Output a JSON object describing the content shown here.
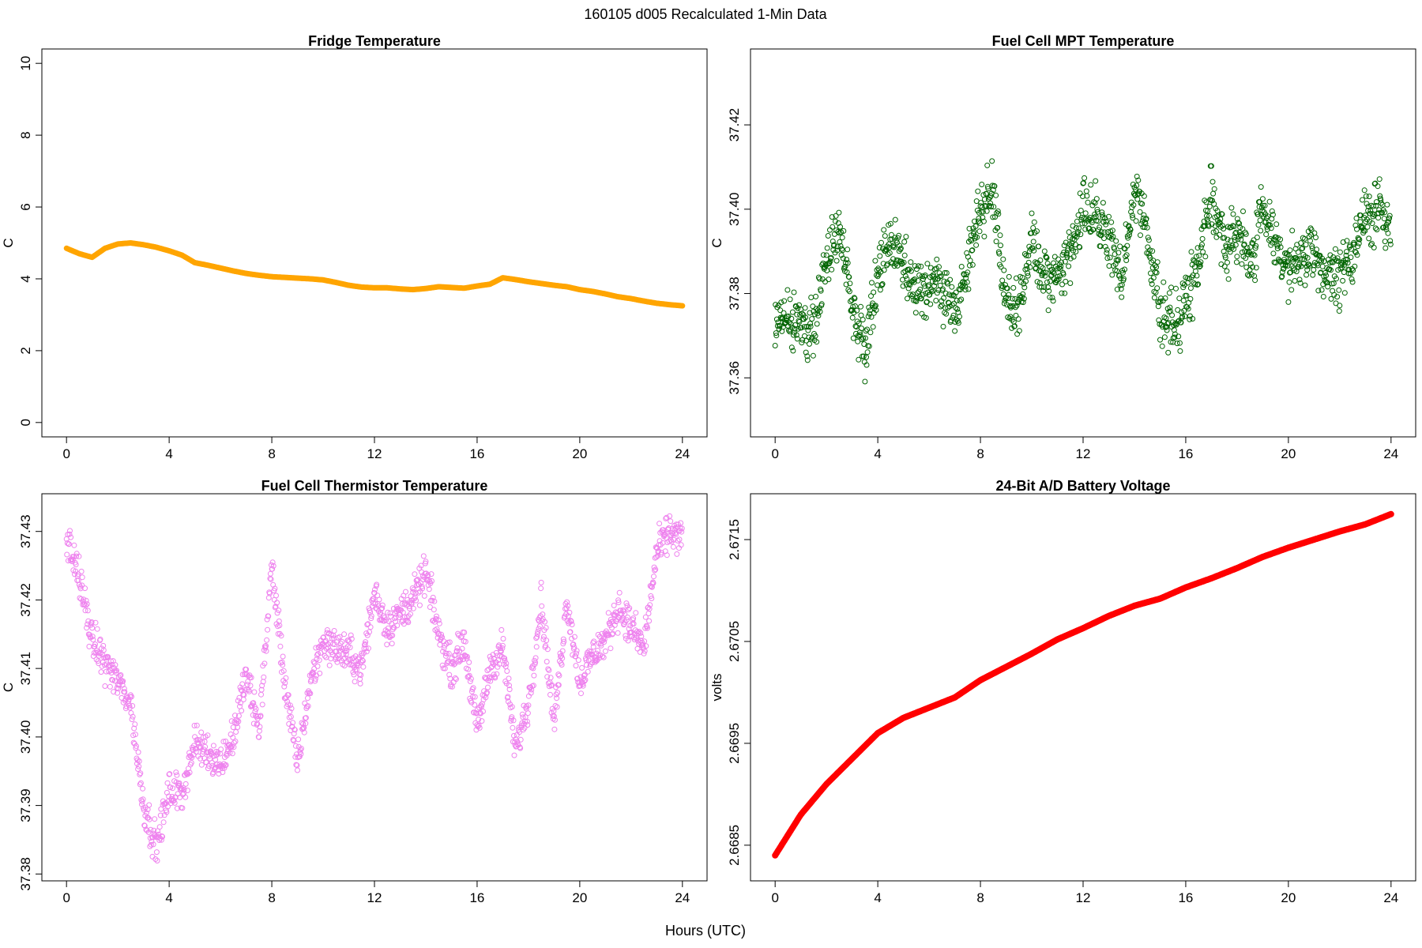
{
  "page": {
    "suptitle": "160105   d005   Recalculated 1-Min Data",
    "xlabel": "Hours (UTC)"
  },
  "chart_data": [
    {
      "id": "fridge",
      "type": "line",
      "title": "Fridge Temperature",
      "xlabel": "Hours (UTC)",
      "ylabel": "C",
      "color": "#FFA500",
      "xlim": [
        -0.96,
        24.96
      ],
      "ylim": [
        -0.4,
        10.4
      ],
      "xticks": [
        "0",
        "4",
        "8",
        "12",
        "16",
        "20",
        "24"
      ],
      "yticks": [
        "0",
        "2",
        "4",
        "6",
        "8",
        "10"
      ],
      "x": [
        0,
        0.5,
        1,
        1.5,
        2,
        2.5,
        3,
        3.5,
        4,
        4.5,
        5,
        5.5,
        6,
        6.5,
        7,
        7.5,
        8,
        8.5,
        9,
        9.5,
        10,
        10.5,
        11,
        11.5,
        12,
        12.5,
        13,
        13.5,
        14,
        14.5,
        15,
        15.5,
        16,
        16.5,
        17,
        17.5,
        18,
        18.5,
        19,
        19.5,
        20,
        20.5,
        21,
        21.5,
        22,
        22.5,
        23,
        23.5,
        24
      ],
      "y": [
        4.85,
        4.7,
        4.6,
        4.85,
        4.97,
        5.0,
        4.95,
        4.88,
        4.78,
        4.66,
        4.45,
        4.38,
        4.3,
        4.22,
        4.15,
        4.1,
        4.06,
        4.04,
        4.02,
        4.0,
        3.97,
        3.9,
        3.82,
        3.77,
        3.75,
        3.75,
        3.72,
        3.7,
        3.73,
        3.78,
        3.76,
        3.74,
        3.8,
        3.85,
        4.03,
        3.98,
        3.92,
        3.87,
        3.82,
        3.78,
        3.7,
        3.65,
        3.58,
        3.5,
        3.45,
        3.38,
        3.32,
        3.28,
        3.25
      ],
      "marker_size": 3
    },
    {
      "id": "mpt",
      "type": "scatter",
      "title": "Fuel Cell MPT Temperature",
      "xlabel": "Hours (UTC)",
      "ylabel": "C",
      "color": "#006400",
      "marker": "open-circle",
      "xlim": [
        -0.96,
        24.96
      ],
      "ylim": [
        37.346,
        37.438
      ],
      "xticks": [
        "0",
        "4",
        "8",
        "12",
        "16",
        "20",
        "24"
      ],
      "yticks": [
        "37.36",
        "37.38",
        "37.40",
        "37.42"
      ],
      "x": [
        0,
        0.5,
        1,
        1.5,
        2,
        2.5,
        3,
        3.5,
        4,
        4.5,
        5,
        5.5,
        6,
        6.5,
        7,
        7.5,
        8,
        8.5,
        9,
        9.5,
        10,
        10.5,
        11,
        11.5,
        12,
        12.5,
        13,
        13.5,
        14,
        14.5,
        15,
        15.5,
        16,
        16.5,
        17,
        17.5,
        18,
        18.5,
        19,
        19.5,
        20,
        20.5,
        21,
        21.5,
        22,
        22.5,
        23,
        23.5,
        24
      ],
      "y": [
        37.372,
        37.376,
        37.374,
        37.37,
        37.388,
        37.395,
        37.378,
        37.368,
        37.385,
        37.393,
        37.386,
        37.38,
        37.384,
        37.38,
        37.376,
        37.386,
        37.4,
        37.405,
        37.378,
        37.376,
        37.393,
        37.382,
        37.384,
        37.39,
        37.4,
        37.398,
        37.393,
        37.382,
        37.405,
        37.395,
        37.375,
        37.372,
        37.378,
        37.388,
        37.405,
        37.39,
        37.395,
        37.387,
        37.4,
        37.393,
        37.385,
        37.388,
        37.389,
        37.384,
        37.384,
        37.39,
        37.398,
        37.4,
        37.395
      ],
      "spread": 0.01,
      "points_per_hour": 60,
      "marker_size": 3
    },
    {
      "id": "thermistor",
      "type": "scatter",
      "title": "Fuel Cell Thermistor Temperature",
      "xlabel": "Hours (UTC)",
      "ylabel": "C",
      "color": "#EE82EE",
      "marker": "open-circle",
      "xlim": [
        -0.96,
        24.96
      ],
      "ylim": [
        37.379,
        37.4355
      ],
      "xticks": [
        "0",
        "4",
        "8",
        "12",
        "16",
        "20",
        "24"
      ],
      "yticks": [
        "37.38",
        "37.39",
        "37.40",
        "37.41",
        "37.42",
        "37.43"
      ],
      "x": [
        0,
        0.5,
        1,
        1.5,
        2,
        2.5,
        3,
        3.5,
        4,
        4.5,
        5,
        5.5,
        6,
        6.5,
        7,
        7.5,
        8,
        8.5,
        9,
        9.5,
        10,
        10.5,
        11,
        11.5,
        12,
        12.5,
        13,
        13.5,
        14,
        14.5,
        15,
        15.5,
        16,
        16.5,
        17,
        17.5,
        18,
        18.5,
        19,
        19.5,
        20,
        20.5,
        21,
        21.5,
        22,
        22.5,
        23,
        23.5,
        24
      ],
      "y": [
        37.429,
        37.423,
        37.414,
        37.411,
        37.408,
        37.405,
        37.39,
        37.384,
        37.392,
        37.392,
        37.399,
        37.398,
        37.396,
        37.4,
        37.409,
        37.401,
        37.425,
        37.408,
        37.396,
        37.408,
        37.414,
        37.413,
        37.412,
        37.41,
        37.421,
        37.416,
        37.418,
        37.42,
        37.424,
        37.415,
        37.41,
        37.414,
        37.401,
        37.41,
        37.413,
        37.398,
        37.405,
        37.42,
        37.402,
        37.42,
        37.408,
        37.412,
        37.414,
        37.419,
        37.416,
        37.413,
        37.427,
        37.43,
        37.429
      ],
      "spread": 0.004,
      "points_per_hour": 60,
      "marker_size": 3
    },
    {
      "id": "battery",
      "type": "line",
      "title": "24-Bit A/D Battery Voltage",
      "xlabel": "Hours (UTC)",
      "ylabel": "volts",
      "color": "#FF0000",
      "xlim": [
        -0.96,
        24.96
      ],
      "ylim": [
        2.66815,
        2.67195
      ],
      "xticks": [
        "0",
        "4",
        "8",
        "12",
        "16",
        "20",
        "24"
      ],
      "yticks": [
        "2.6685",
        "2.6695",
        "2.6705",
        "2.6715"
      ],
      "x": [
        0,
        1,
        2,
        3,
        4,
        5,
        6,
        7,
        8,
        9,
        10,
        11,
        12,
        13,
        14,
        15,
        16,
        17,
        18,
        19,
        20,
        21,
        22,
        23,
        24
      ],
      "y": [
        2.6684,
        2.6688,
        2.6691,
        2.66935,
        2.6696,
        2.66975,
        2.66985,
        2.66995,
        2.67012,
        2.67025,
        2.67038,
        2.67052,
        2.67063,
        2.67075,
        2.67085,
        2.67092,
        2.67103,
        2.67112,
        2.67122,
        2.67133,
        2.67142,
        2.6715,
        2.67158,
        2.67165,
        2.67175
      ],
      "marker_size": 3.5
    }
  ]
}
